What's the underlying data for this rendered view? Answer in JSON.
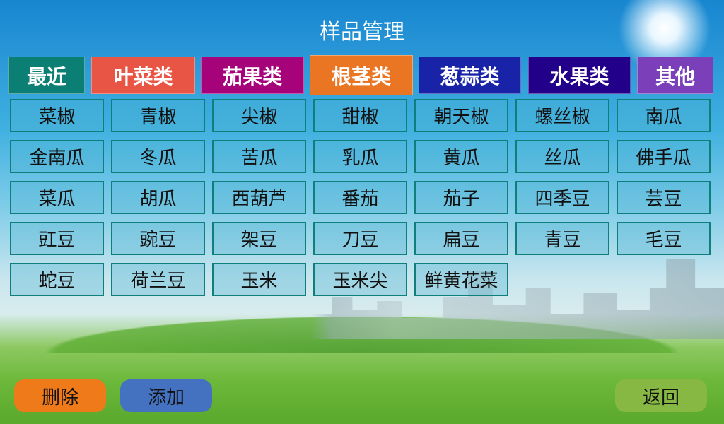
{
  "title": "样品管理",
  "tabs": [
    {
      "label": "最近",
      "color": "#0b7f73"
    },
    {
      "label": "叶菜类",
      "color": "#e85544"
    },
    {
      "label": "茄果类",
      "color": "#a6037b"
    },
    {
      "label": "根茎类",
      "color": "#ea7623"
    },
    {
      "label": "葱蒜类",
      "color": "#1823a8"
    },
    {
      "label": "水果类",
      "color": "#23008a"
    },
    {
      "label": "其他",
      "color": "#7c3fba"
    }
  ],
  "items": [
    "菜椒",
    "青椒",
    "尖椒",
    "甜椒",
    "朝天椒",
    "螺丝椒",
    "南瓜",
    "金南瓜",
    "冬瓜",
    "苦瓜",
    "乳瓜",
    "黄瓜",
    "丝瓜",
    "佛手瓜",
    "菜瓜",
    "胡瓜",
    "西葫芦",
    "番茄",
    "茄子",
    "四季豆",
    "芸豆",
    "豇豆",
    "豌豆",
    "架豆",
    "刀豆",
    "扁豆",
    "青豆",
    "毛豆",
    "蛇豆",
    "荷兰豆",
    "玉米",
    "玉米尖",
    "鲜黄花菜"
  ],
  "buttons": {
    "delete": "删除",
    "add": "添加",
    "back": "返回"
  },
  "button_colors": {
    "delete": "#ee7a1a",
    "add": "#4472c0",
    "back": "#86b843"
  }
}
